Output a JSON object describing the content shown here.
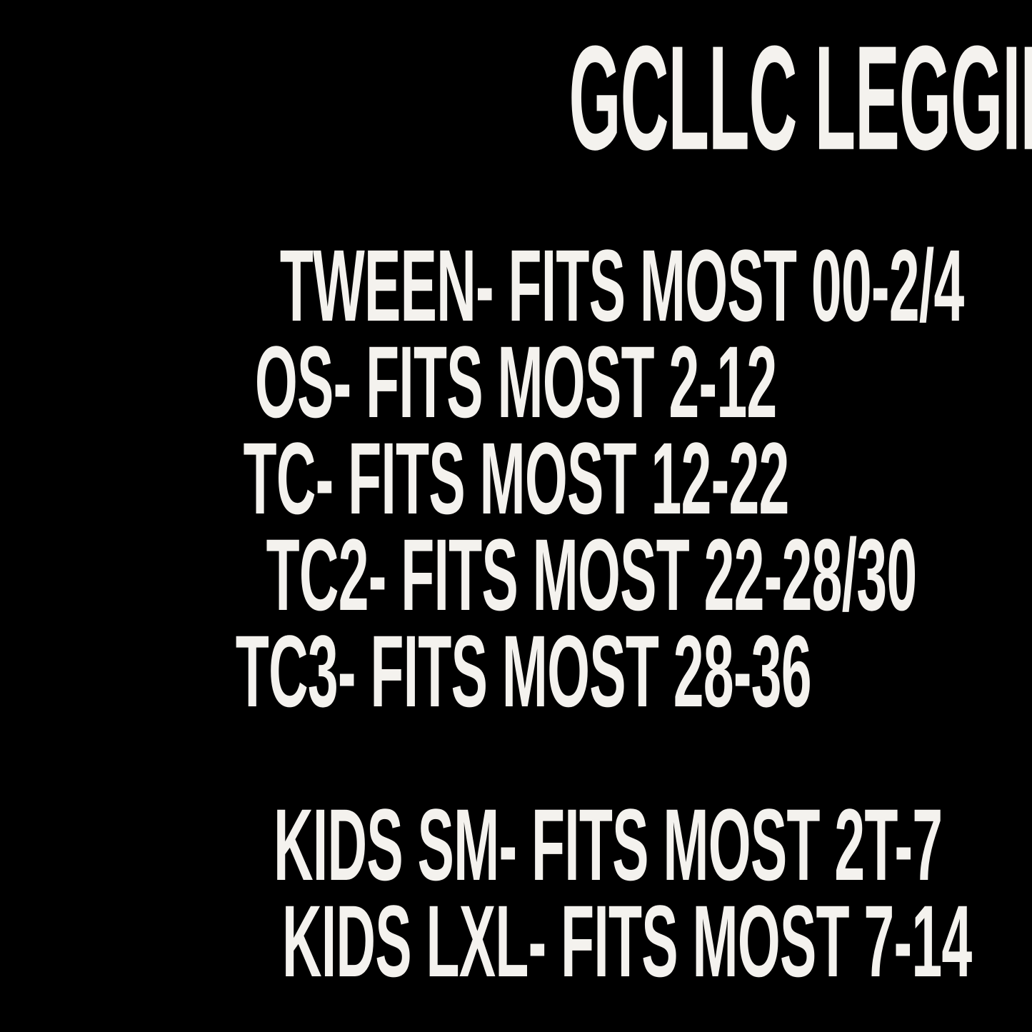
{
  "colors": {
    "background": "#000000",
    "text": "#f4f2ee"
  },
  "title": "GCLLC LEGGINGS SIZE CHART",
  "adult_sizes": [
    {
      "label": "TWEEN",
      "fits": "FITS MOST 00-2/4",
      "text": "TWEEN- FITS MOST 00-2/4"
    },
    {
      "label": "OS",
      "fits": "FITS MOST 2-12",
      "text": "OS- FITS MOST 2-12"
    },
    {
      "label": "TC",
      "fits": "FITS MOST 12-22",
      "text": "TC- FITS MOST 12-22"
    },
    {
      "label": "TC2",
      "fits": "FITS MOST 22-28/30",
      "text": "TC2- FITS MOST 22-28/30"
    },
    {
      "label": "TC3",
      "fits": "FITS MOST 28-36",
      "text": "TC3- FITS MOST 28-36"
    }
  ],
  "kids_sizes": [
    {
      "label": "KIDS SM",
      "fits": "FITS MOST 2T-7",
      "text": "KIDS SM- FITS MOST 2T-7"
    },
    {
      "label": "KIDS LXL",
      "fits": "FITS MOST 7-14",
      "text": "KIDS LXL- FITS MOST 7-14"
    }
  ]
}
